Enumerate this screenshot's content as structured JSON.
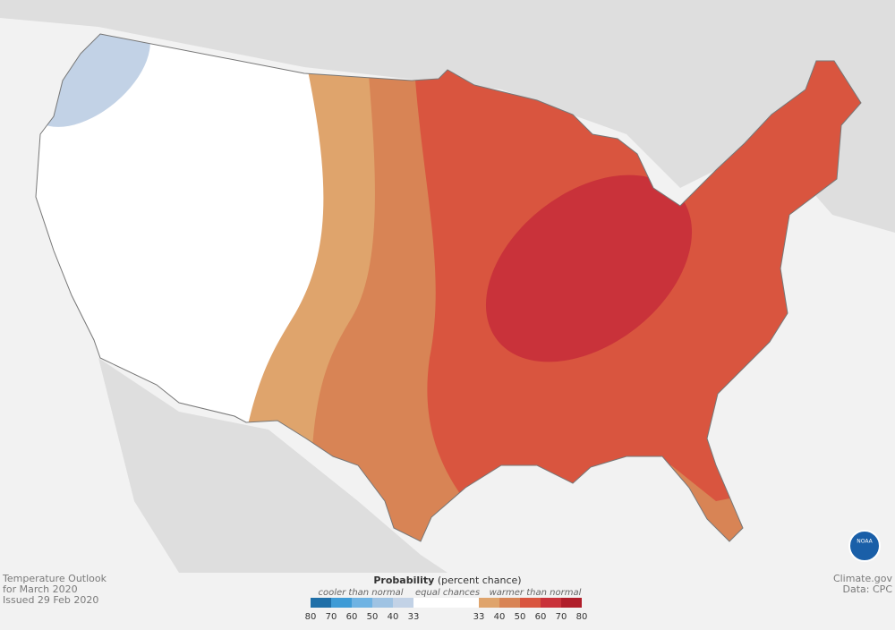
{
  "footer": {
    "left": [
      "Temperature Outlook",
      "for March 2020",
      "Issued 29 Feb 2020"
    ],
    "right": [
      "Climate.gov",
      "Data: CPC"
    ]
  },
  "logo": "NOAA",
  "legend": {
    "title": "Probability",
    "title_note": "(percent chance)",
    "cooler": "cooler than normal",
    "equal": "equal chances",
    "warmer": "warmer than normal",
    "cool_ticks": [
      80,
      70,
      60,
      50,
      40,
      33
    ],
    "warm_ticks": [
      33,
      40,
      50,
      60,
      70,
      80
    ],
    "cool_colors": [
      "#1f6fa8",
      "#3e9bd6",
      "#6fb3e3",
      "#9fc3e3",
      "#c2d2e6"
    ],
    "equal_color": "#ffffff",
    "warm_colors": [
      "#dfa46c",
      "#d88455",
      "#d9553f",
      "#c9323a",
      "#b01e2a"
    ]
  }
}
